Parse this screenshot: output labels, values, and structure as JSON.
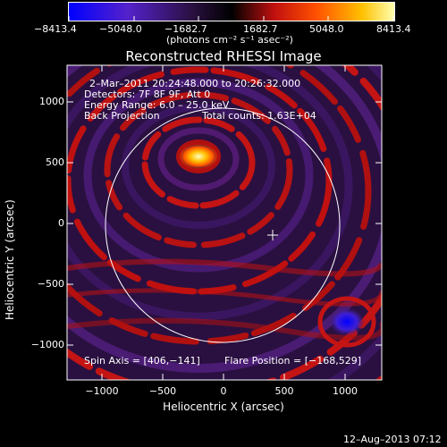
{
  "colorbar": {
    "tick_labels": [
      "−8413.4",
      "−5048.0",
      "−1682.7",
      "1682.7",
      "5048.0",
      "8413.4"
    ],
    "units_label": "(photons cm⁻² s⁻¹ asec⁻²)",
    "stops": [
      "#0000ff",
      "#5522cc",
      "#2a1040",
      "#000000",
      "#c01010",
      "#ff5000",
      "#ffc000",
      "#ffffb0"
    ]
  },
  "plot": {
    "title": "Reconstructed RHESSI Image",
    "xlabel": "Heliocentric X (arcsec)",
    "ylabel": "Heliocentric Y (arcsec)",
    "xticks": [
      "−1000",
      "−500",
      "0",
      "500",
      "1000"
    ],
    "yticks": [
      "1000",
      "500",
      "0",
      "−500",
      "−1000"
    ],
    "info": {
      "time_range": "2–Mar–2011 20:24:48.000 to 20:26:32.000",
      "detectors": "Detectors: 7F 8F 9F, Att 0",
      "energy": "Energy Range: 6.0 – 25.0 keV",
      "method": "Back Projection",
      "counts": "Total counts: 1.63E+04"
    },
    "spin_axis": "Spin Axis = [406,−141]",
    "flare_position": "Flare Position = [−168,529]"
  },
  "footer": {
    "timestamp": "12–Aug–2013 07:12"
  }
}
